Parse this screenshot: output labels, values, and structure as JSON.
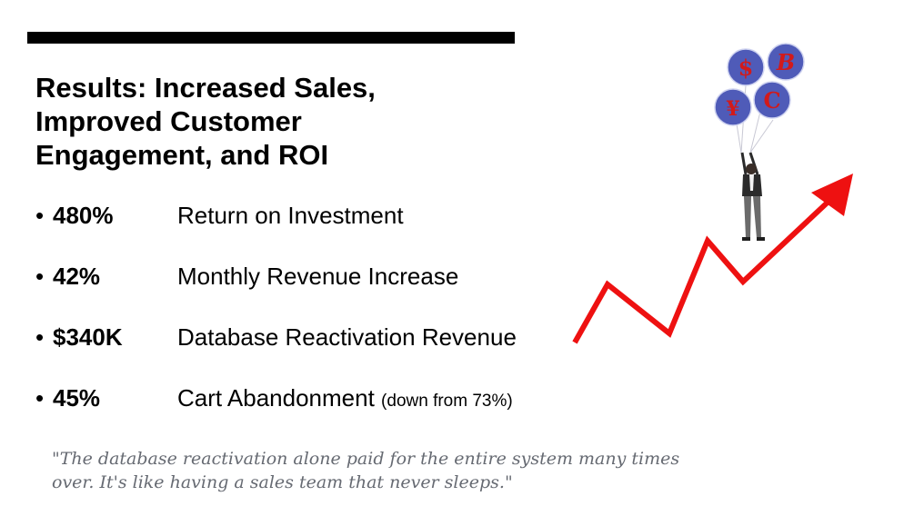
{
  "slide": {
    "title": "Results: Increased Sales, Improved Customer Engagement, and ROI",
    "metrics": [
      {
        "bullet": "•",
        "value": "480%",
        "label": "Return on Investment",
        "note": ""
      },
      {
        "bullet": "•",
        "value": "42%",
        "label": "Monthly Revenue Increase",
        "note": ""
      },
      {
        "bullet": "•",
        "value": "$340K",
        "label": "Database Reactivation Revenue",
        "note": ""
      },
      {
        "bullet": "•",
        "value": "45%",
        "label": "Cart Abandonment",
        "note": "(down from 73%)"
      }
    ],
    "quote": "\"The database reactivation alone paid for the entire system many times over. It's like having a sales team that never sleeps.\""
  },
  "illustration": {
    "balloon_symbols": [
      "$",
      "B",
      "¥",
      "C"
    ],
    "colors": {
      "balloon_fill": "#4f5bb8",
      "balloon_symbol": "#d21a1a",
      "arrow": "#ee1111",
      "suit": "#2b2b2b",
      "trousers": "#6b6b6b"
    }
  }
}
